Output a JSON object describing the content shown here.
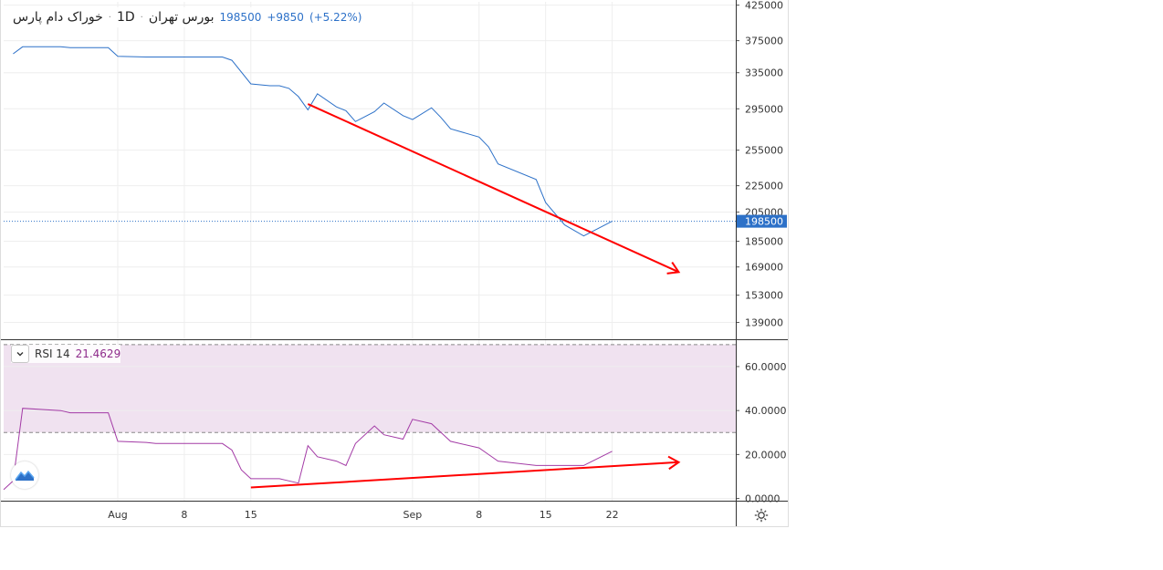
{
  "header": {
    "symbol": "خوراک دام پارس",
    "timeframe": "1D",
    "exchange": "بورس تهران",
    "separator": "·",
    "last": "198500",
    "change": "+9850",
    "change_pct": "(+5.22%)"
  },
  "rsi_legend": {
    "name": "RSI 14",
    "value": "21.4629"
  },
  "colors": {
    "price_line": "#2d71c8",
    "rsi_line": "#a33ba6",
    "rsi_band": "#f0e2f0",
    "arrow": "#ff0000",
    "badge": "#2d71c8"
  },
  "icons": {
    "collapse": "chevron-down-icon",
    "logo": "tradingview-logo-icon",
    "settings": "gear-icon"
  },
  "chart_data": [
    {
      "type": "line",
      "name": "price",
      "y_ticks": [
        425000,
        375000,
        335000,
        295000,
        255000,
        225000,
        205000,
        185000,
        169000,
        153000,
        139000
      ],
      "y_tick_labels": [
        "425000",
        "375000",
        "335000",
        "295000",
        "255000",
        "225000",
        "205000",
        "185000",
        "169000",
        "153000",
        "139000"
      ],
      "last_value": 198500,
      "last_label": "198500",
      "x": [
        "Jul 21",
        "Jul 22",
        "Jul 26",
        "Jul 27",
        "Jul 28",
        "Jul 29",
        "Jul 31",
        "Aug 1",
        "Aug 4",
        "Aug 5",
        "Aug 10",
        "Aug 11",
        "Aug 12",
        "Aug 13",
        "Aug 15",
        "Aug 17",
        "Aug 18",
        "Aug 19",
        "Aug 20",
        "Aug 21",
        "Aug 22",
        "Aug 24",
        "Aug 25",
        "Aug 26",
        "Aug 28",
        "Aug 29",
        "Aug 31",
        "Sep 1",
        "Sep 3",
        "Sep 4",
        "Sep 5",
        "Sep 8",
        "Sep 9",
        "Sep 10",
        "Sep 14",
        "Sep 15",
        "Sep 17",
        "Sep 19",
        "Sep 22"
      ],
      "values": [
        358000,
        367000,
        367000,
        366000,
        366000,
        366000,
        366000,
        355000,
        354000,
        354000,
        354000,
        354000,
        354000,
        350000,
        322000,
        320000,
        320000,
        317000,
        308000,
        294000,
        311000,
        297000,
        293000,
        282000,
        292000,
        301000,
        288000,
        284000,
        296000,
        286000,
        275000,
        267000,
        258000,
        243000,
        230000,
        212000,
        196000,
        188500,
        198500
      ],
      "xlim": [
        "Jul 20",
        "Oct 5"
      ],
      "ylim": [
        131000,
        430000
      ]
    },
    {
      "type": "line",
      "name": "RSI 14",
      "y_ticks": [
        60,
        40,
        20,
        0
      ],
      "y_tick_labels": [
        "60.0000",
        "40.0000",
        "20.0000",
        "0.0000"
      ],
      "bands": [
        30,
        70
      ],
      "x": [
        "Jul 20",
        "Jul 21",
        "Jul 22",
        "Jul 26",
        "Jul 27",
        "Jul 28",
        "Jul 29",
        "Jul 31",
        "Aug 1",
        "Aug 4",
        "Aug 5",
        "Aug 10",
        "Aug 11",
        "Aug 12",
        "Aug 13",
        "Aug 14",
        "Aug 15",
        "Aug 17",
        "Aug 18",
        "Aug 19",
        "Aug 20",
        "Aug 21",
        "Aug 22",
        "Aug 24",
        "Aug 25",
        "Aug 26",
        "Aug 28",
        "Aug 29",
        "Aug 31",
        "Sep 1",
        "Sep 3",
        "Sep 4",
        "Sep 5",
        "Sep 8",
        "Sep 9",
        "Sep 10",
        "Sep 14",
        "Sep 15",
        "Sep 17",
        "Sep 19",
        "Sep 22"
      ],
      "values": [
        4,
        8,
        41,
        40,
        39,
        39,
        39,
        39,
        26,
        25.5,
        25,
        25,
        25,
        25,
        22,
        13,
        9,
        9,
        9,
        8,
        7,
        24,
        19,
        17,
        15,
        25,
        33,
        29,
        27,
        36,
        34,
        30,
        26,
        23,
        20,
        17,
        15,
        15,
        15,
        15,
        21.4629
      ],
      "xlim": [
        "Jul 20",
        "Oct 5"
      ],
      "ylim": [
        -1,
        72
      ]
    }
  ],
  "x_axis": {
    "labels": [
      "Aug",
      "8",
      "15",
      "Sep",
      "8",
      "15",
      "22"
    ],
    "dates": [
      "Aug 1",
      "Aug 8",
      "Aug 15",
      "Sep 1",
      "Sep 8",
      "Sep 15",
      "Sep 22"
    ]
  },
  "annotations": [
    {
      "name": "price-trend-arrow",
      "pane": "price",
      "from": [
        "Aug 21",
        300000
      ],
      "to": [
        "Sep 29",
        166000
      ]
    },
    {
      "name": "rsi-trend-arrow",
      "pane": "rsi",
      "from": [
        "Aug 15",
        5
      ],
      "to": [
        "Sep 29",
        16.5
      ]
    }
  ]
}
